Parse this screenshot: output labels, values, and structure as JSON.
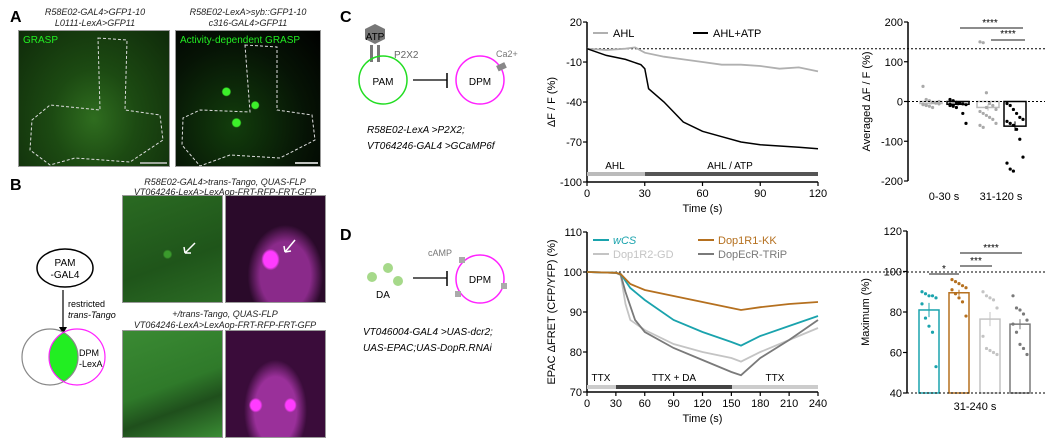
{
  "panels": {
    "A": "A",
    "B": "B",
    "C": "C",
    "D": "D"
  },
  "panelA": {
    "left_title": [
      "R58E02-GAL4>GFP1-10",
      "L0111-LexA>GFP11"
    ],
    "left_label": "GRASP",
    "right_title": [
      "R58E02-LexA>syb::GFP1-10",
      "c316-GAL4>GFP11"
    ],
    "right_label": "Activity-dependent GRASP"
  },
  "panelB": {
    "top_title": [
      "R58E02-GAL4>trans-Tango, QUAS-FLP",
      "VT064246-LexA>LexAop-FRT-RFP-FRT-GFP"
    ],
    "bottom_title": [
      "+/trans-Tango, QUAS-FLP",
      "VT064246-LexA>LexAop-FRT-RFP-FRT-GFP"
    ],
    "diagram": {
      "pam": [
        "PAM",
        "-GAL4"
      ],
      "arrow_label": [
        "restricted",
        "trans-Tango"
      ],
      "dpm": [
        "DPM",
        "-LexA"
      ]
    }
  },
  "panelC": {
    "diagram": {
      "atp": "ATP",
      "receptor": "P2X2",
      "pam": "PAM",
      "dpm": "DPM",
      "ca": "Ca2+",
      "genotype": [
        "R58E02-LexA >P2X2;",
        "VT064246-GAL4 >GCaMP6f"
      ]
    },
    "stim": {
      "first": "AHL",
      "second": "AHL / ATP"
    }
  },
  "panelD": {
    "diagram": {
      "da": "DA",
      "camp": "cAMP",
      "dpm": "DPM",
      "genotype": [
        "VT046004-GAL4 >UAS-dcr2;",
        "UAS-EPAC;UAS-DopR.RNAi"
      ]
    },
    "stim": {
      "first": "TTX",
      "second": "TTX + DA",
      "third": "TTX"
    }
  },
  "colors": {
    "green": "#22dd22",
    "magenta": "#ff22ff",
    "wCS": "#1aa3ad",
    "Dop1R1-KK": "#b5701f",
    "Dop1R2-GD": "#c4c4c4",
    "DopEcR-TRiP": "#7a7a7a",
    "AHL": "#b0b0b0",
    "AHL+ATP": "#000000"
  },
  "chart_data": [
    {
      "type": "line",
      "xlabel": "Time (s)",
      "ylabel": "ΔF / F (%)",
      "xlim": [
        0,
        120
      ],
      "ylim": [
        -100,
        20
      ],
      "xticks": [
        0,
        30,
        60,
        90,
        120
      ],
      "yticks": [
        20,
        -10,
        -40,
        -70,
        -100
      ],
      "series": [
        {
          "name": "AHL",
          "x": [
            0,
            10,
            20,
            25,
            30,
            40,
            50,
            60,
            70,
            80,
            90,
            100,
            110,
            120
          ],
          "y": [
            0,
            -1,
            0,
            1,
            -3,
            -6,
            -8,
            -10,
            -12,
            -12,
            -13,
            -15,
            -14,
            -17
          ]
        },
        {
          "name": "AHL+ATP",
          "x": [
            0,
            10,
            20,
            28,
            30,
            32,
            40,
            50,
            60,
            70,
            80,
            90,
            100,
            110,
            120
          ],
          "y": [
            0,
            -5,
            -8,
            -12,
            -15,
            -30,
            -40,
            -55,
            -62,
            -66,
            -70,
            -72,
            -73,
            -74,
            -75
          ]
        }
      ]
    },
    {
      "type": "bar",
      "ylabel": "Averaged ΔF / F (%)",
      "ylim": [
        -200,
        200
      ],
      "yticks": [
        200,
        100,
        0,
        -100,
        -200
      ],
      "categories": [
        "0-30 s",
        "31-120 s"
      ],
      "bars": [
        {
          "group": "0-30 s",
          "series": "AHL",
          "mean": -5,
          "sem": 3,
          "points": [
            38,
            5,
            2,
            -2,
            -4,
            -6,
            -8,
            -10,
            -12,
            -15,
            -3,
            0,
            -7,
            -9
          ]
        },
        {
          "group": "0-30 s",
          "series": "AHL+ATP",
          "mean": -7,
          "sem": 3,
          "points": [
            5,
            2,
            -2,
            -4,
            -6,
            -8,
            -10,
            -12,
            -15,
            -3,
            -30,
            -55,
            -7,
            -9
          ]
        },
        {
          "group": "31-120 s",
          "series": "AHL",
          "mean": -15,
          "sem": 8,
          "points": [
            150,
            148,
            22,
            -5,
            -10,
            -20,
            -25,
            -30,
            -35,
            -40,
            -45,
            -55,
            -60,
            -65,
            -15
          ]
        },
        {
          "group": "31-120 s",
          "series": "AHL+ATP",
          "mean": -62,
          "sem": 12,
          "points": [
            -5,
            -10,
            -20,
            -30,
            -40,
            -45,
            -50,
            -55,
            -60,
            -70,
            -95,
            -140,
            -155,
            -170,
            -175
          ]
        }
      ],
      "significance": [
        {
          "label": "****",
          "from": "0-30 s AHL+ATP",
          "to": "31-120 s AHL+ATP"
        },
        {
          "label": "****",
          "from": "31-120 s AHL",
          "to": "31-120 s AHL+ATP"
        }
      ]
    },
    {
      "type": "line",
      "xlabel": "Time (s)",
      "ylabel": "EPAC ΔFRET (CFP/YFP) (%)",
      "xlim": [
        0,
        240
      ],
      "ylim": [
        70,
        110
      ],
      "xticks": [
        0,
        30,
        60,
        90,
        120,
        150,
        180,
        210,
        240
      ],
      "yticks": [
        70,
        80,
        90,
        100,
        110
      ],
      "series": [
        {
          "name": "wCS",
          "x": [
            0,
            30,
            35,
            45,
            60,
            90,
            120,
            150,
            160,
            180,
            210,
            240
          ],
          "y": [
            100,
            99.8,
            99.5,
            96,
            93,
            88,
            85,
            82.5,
            81.6,
            84,
            86.5,
            89
          ]
        },
        {
          "name": "Dop1R1-KK",
          "x": [
            0,
            30,
            35,
            45,
            60,
            90,
            120,
            150,
            160,
            180,
            210,
            240
          ],
          "y": [
            100,
            99.8,
            99.5,
            97,
            95.5,
            94,
            92.5,
            91,
            90.5,
            91.2,
            92,
            92.5
          ]
        },
        {
          "name": "Dop1R2-GD",
          "x": [
            0,
            30,
            35,
            40,
            45,
            60,
            90,
            120,
            150,
            160,
            180,
            210,
            240
          ],
          "y": [
            100,
            99.8,
            99.2,
            92,
            88,
            85.5,
            82,
            80,
            78.5,
            77.6,
            80,
            83,
            86
          ]
        },
        {
          "name": "DopEcR-TRiP",
          "x": [
            0,
            30,
            35,
            40,
            50,
            60,
            90,
            120,
            150,
            160,
            180,
            210,
            240
          ],
          "y": [
            100,
            99.8,
            99.3,
            95,
            88,
            85,
            81,
            78,
            75,
            74.2,
            78.5,
            83,
            88
          ]
        }
      ]
    },
    {
      "type": "bar",
      "xlabel": "31-240 s",
      "ylabel": "Maximum  (%)",
      "ylim": [
        40,
        120
      ],
      "yticks": [
        40,
        60,
        80,
        100,
        120
      ],
      "categories": [
        "wCS",
        "Dop1R1-KK",
        "Dop1R2-GD",
        "DopEcR-TRiP"
      ],
      "bars": [
        {
          "series": "wCS",
          "mean": 81,
          "sem": 3.5,
          "points": [
            90,
            89,
            88,
            88,
            87,
            84,
            77,
            73,
            70,
            53
          ]
        },
        {
          "series": "Dop1R1-KK",
          "mean": 89.5,
          "sem": 1.5,
          "points": [
            96,
            95,
            94,
            93,
            92,
            91,
            89,
            87,
            85,
            78
          ]
        },
        {
          "series": "Dop1R2-GD",
          "mean": 76.5,
          "sem": 3.5,
          "points": [
            90,
            88,
            87,
            86,
            82,
            68,
            62,
            61,
            60,
            59
          ]
        },
        {
          "series": "DopEcR-TRiP",
          "mean": 74,
          "sem": 2.5,
          "points": [
            88,
            82,
            81,
            79,
            76,
            74,
            70,
            64,
            62,
            59
          ]
        }
      ],
      "significance": [
        {
          "label": "*",
          "from": "wCS",
          "to": "Dop1R1-KK"
        },
        {
          "label": "***",
          "from": "Dop1R1-KK",
          "to": "Dop1R2-GD"
        },
        {
          "label": "****",
          "from": "Dop1R1-KK",
          "to": "DopEcR-TRiP"
        }
      ]
    }
  ]
}
